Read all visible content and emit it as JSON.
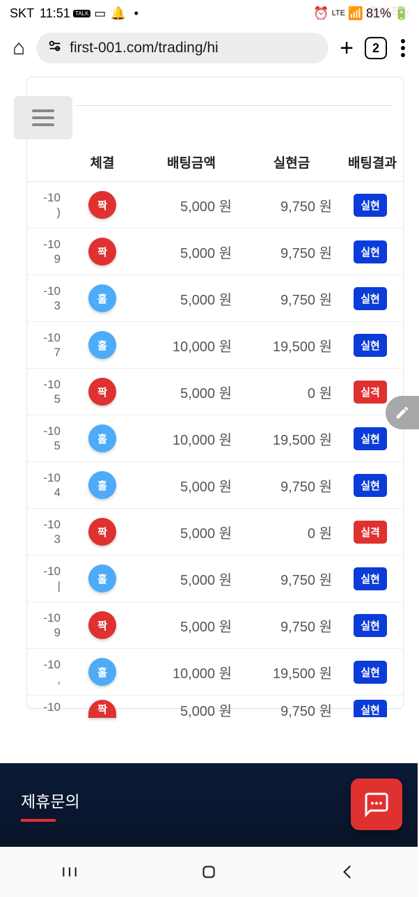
{
  "status": {
    "carrier": "SKT",
    "time": "11:51",
    "network": "LTE",
    "battery": "81%"
  },
  "browser": {
    "url": "first-001.com/trading/hi",
    "tab_count": "2"
  },
  "table": {
    "headers": {
      "col1": "",
      "col2": "체결",
      "col3": "배팅금액",
      "col4": "실현금",
      "col5": "배팅결과"
    },
    "rows": [
      {
        "date": "-10\n)",
        "chip": "짝",
        "chip_color": "red",
        "bet": "5,000 원",
        "realized": "9,750 원",
        "result": "실현",
        "result_color": "blue"
      },
      {
        "date": "-10\n9",
        "chip": "짝",
        "chip_color": "red",
        "bet": "5,000 원",
        "realized": "9,750 원",
        "result": "실현",
        "result_color": "blue"
      },
      {
        "date": "-10\n3",
        "chip": "홀",
        "chip_color": "blue",
        "bet": "5,000 원",
        "realized": "9,750 원",
        "result": "실현",
        "result_color": "blue"
      },
      {
        "date": "-10\n7",
        "chip": "홀",
        "chip_color": "blue",
        "bet": "10,000 원",
        "realized": "19,500 원",
        "result": "실현",
        "result_color": "blue"
      },
      {
        "date": "-10\n5",
        "chip": "짝",
        "chip_color": "red",
        "bet": "5,000 원",
        "realized": "0 원",
        "result": "실격",
        "result_color": "red"
      },
      {
        "date": "-10\n5",
        "chip": "홀",
        "chip_color": "blue",
        "bet": "10,000 원",
        "realized": "19,500 원",
        "result": "실현",
        "result_color": "blue"
      },
      {
        "date": "-10\n4",
        "chip": "홀",
        "chip_color": "blue",
        "bet": "5,000 원",
        "realized": "9,750 원",
        "result": "실현",
        "result_color": "blue"
      },
      {
        "date": "-10\n3",
        "chip": "짝",
        "chip_color": "red",
        "bet": "5,000 원",
        "realized": "0 원",
        "result": "실격",
        "result_color": "red"
      },
      {
        "date": "-10\n|",
        "chip": "홀",
        "chip_color": "blue",
        "bet": "5,000 원",
        "realized": "9,750 원",
        "result": "실현",
        "result_color": "blue"
      },
      {
        "date": "-10\n9",
        "chip": "짝",
        "chip_color": "red",
        "bet": "5,000 원",
        "realized": "9,750 원",
        "result": "실현",
        "result_color": "blue"
      },
      {
        "date": "-10\n,",
        "chip": "홀",
        "chip_color": "blue",
        "bet": "10,000 원",
        "realized": "19,500 원",
        "result": "실현",
        "result_color": "blue"
      },
      {
        "date": "-10",
        "chip": "짝",
        "chip_color": "red",
        "bet": "5,000 원",
        "realized": "9,750 원",
        "result": "실현",
        "result_color": "blue",
        "cut": true
      }
    ]
  },
  "footer": {
    "title": "제휴문의"
  },
  "colors": {
    "chip_red": "#e03131",
    "chip_blue": "#4dabf7",
    "tag_blue": "#0b3bd8",
    "tag_red": "#e03131"
  }
}
